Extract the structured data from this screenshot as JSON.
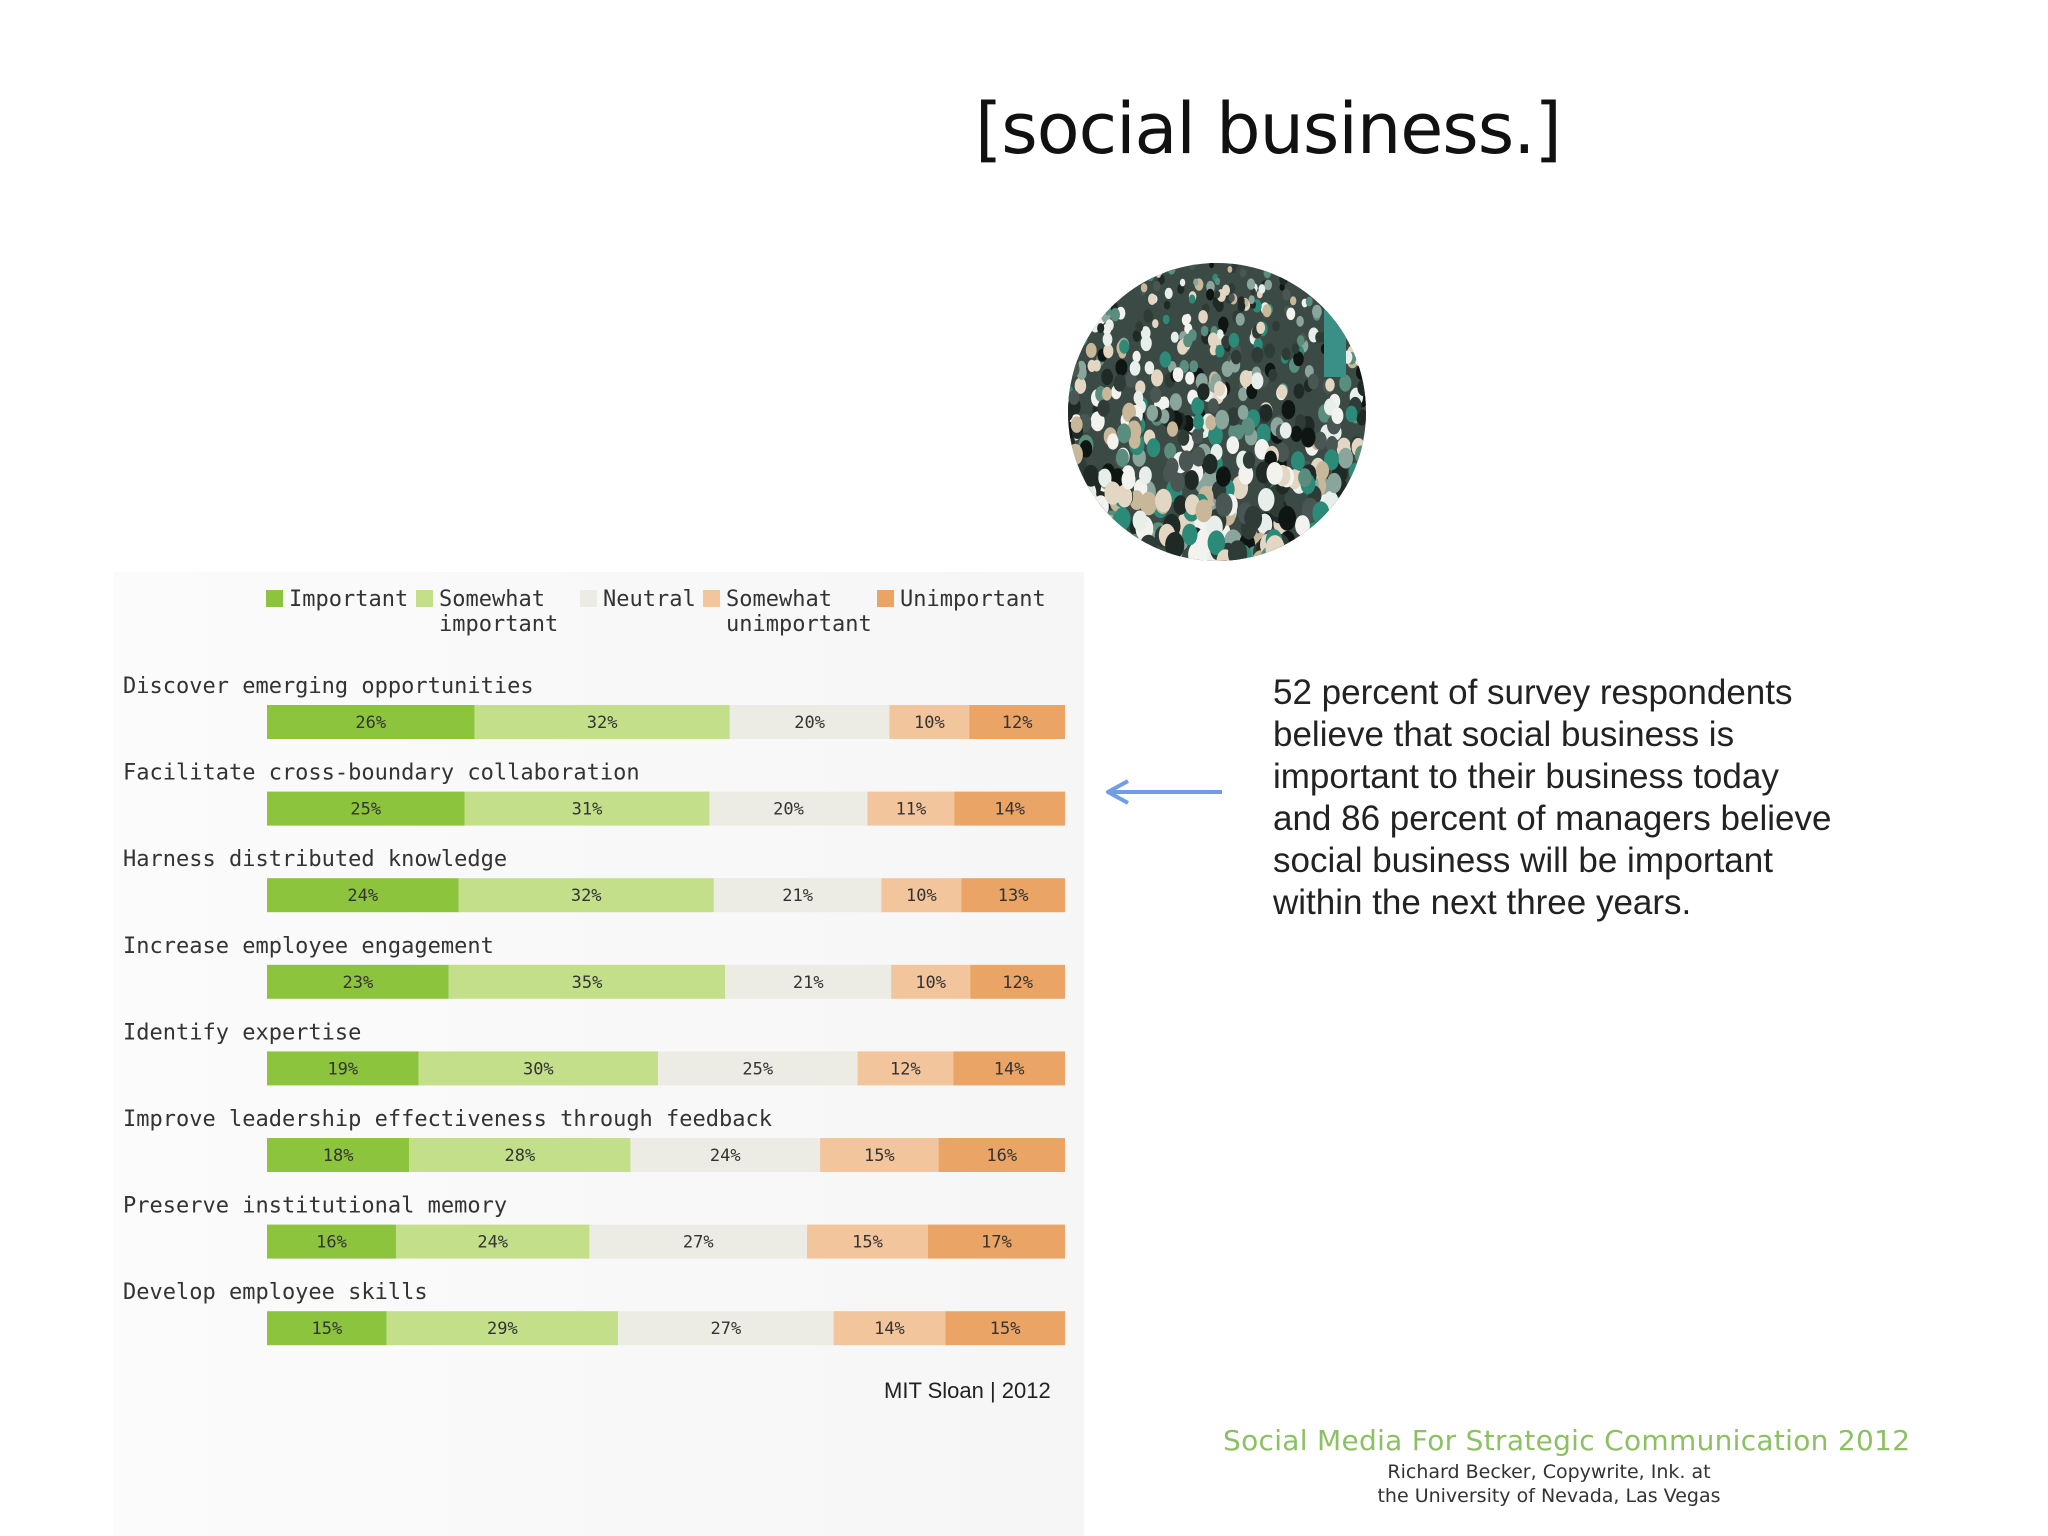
{
  "slide": {
    "title": "[social business.]",
    "callout": "52 percent of survey respondents believe that social business is important to their business today and 86 percent of managers believe social business will be important within the next three years.",
    "source": "MIT Sloan | 2012",
    "footer": {
      "title": "Social Media For Strategic Communication 2012",
      "line1": "Richard Becker, Copywrite, Ink. at",
      "line2": "the University of Nevada, Las Vegas"
    }
  },
  "colors": {
    "important": "#8cc43e",
    "somewhat_important": "#c3df8a",
    "neutral": "#ecece4",
    "somewhat_unimportant": "#f3c59c",
    "unimportant": "#eaa466",
    "arrow": "#6f9ee6"
  },
  "chart_data": {
    "type": "bar",
    "stacked": true,
    "orientation": "horizontal",
    "legend_position": "top",
    "categories": [
      "Discover emerging opportunities",
      "Facilitate cross-boundary collaboration",
      "Harness distributed knowledge",
      "Increase employee engagement",
      "Identify expertise",
      "Improve leadership effectiveness through feedback",
      "Preserve institutional memory",
      "Develop employee skills"
    ],
    "series": [
      {
        "name": "Important",
        "legend_lines": [
          "Important"
        ],
        "color_key": "important",
        "values": [
          26,
          25,
          24,
          23,
          19,
          18,
          16,
          15
        ]
      },
      {
        "name": "Somewhat important",
        "legend_lines": [
          "Somewhat",
          "important"
        ],
        "color_key": "somewhat_important",
        "values": [
          32,
          31,
          32,
          35,
          30,
          28,
          24,
          29
        ]
      },
      {
        "name": "Neutral",
        "legend_lines": [
          "Neutral"
        ],
        "color_key": "neutral",
        "values": [
          20,
          20,
          21,
          21,
          25,
          24,
          27,
          27
        ]
      },
      {
        "name": "Somewhat unimportant",
        "legend_lines": [
          "Somewhat",
          "unimportant"
        ],
        "color_key": "somewhat_unimportant",
        "values": [
          10,
          11,
          10,
          10,
          12,
          15,
          15,
          14
        ]
      },
      {
        "name": "Unimportant",
        "legend_lines": [
          "Unimportant"
        ],
        "color_key": "unimportant",
        "values": [
          12,
          14,
          13,
          12,
          14,
          16,
          17,
          15
        ]
      }
    ],
    "value_suffix": "%"
  }
}
